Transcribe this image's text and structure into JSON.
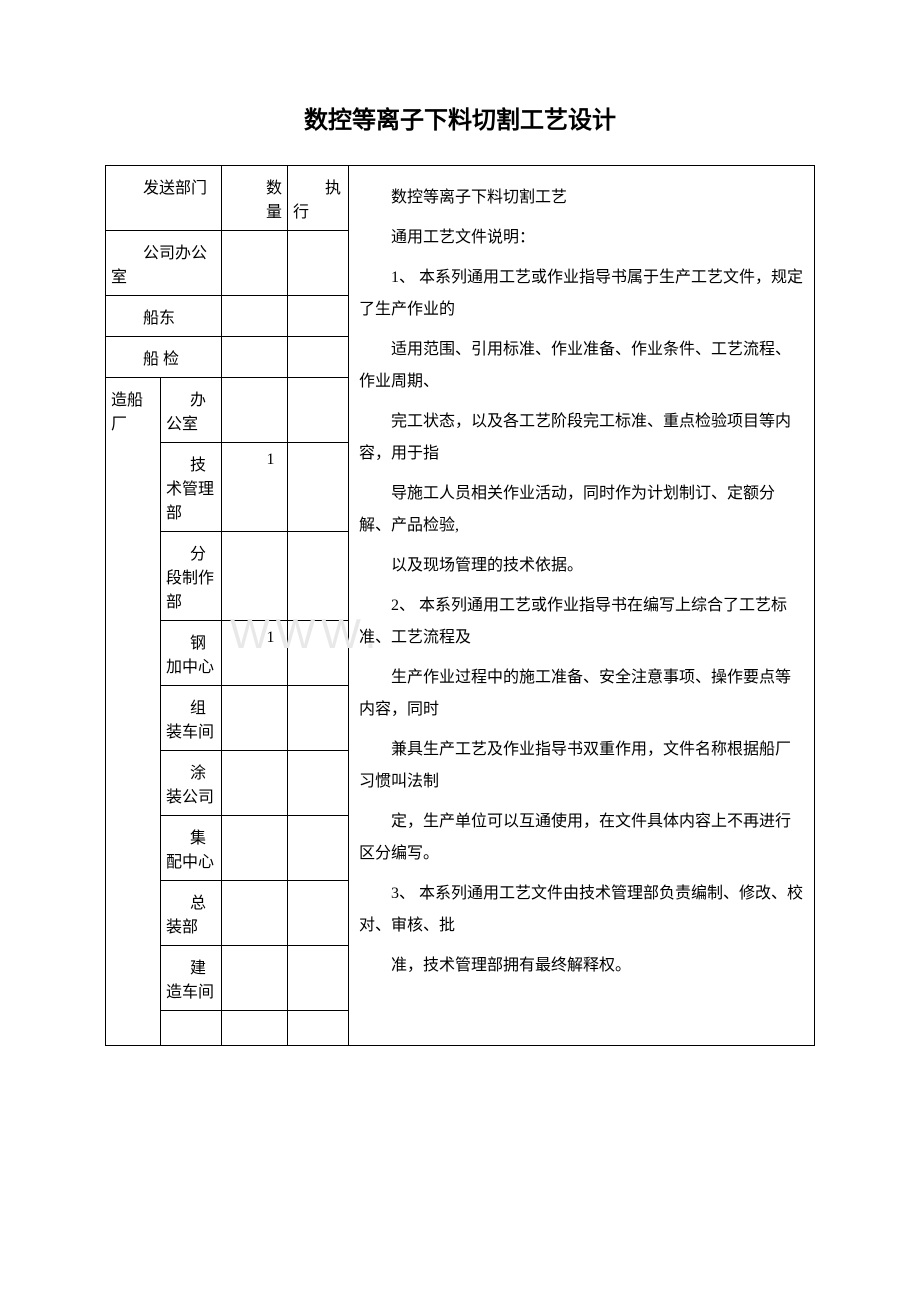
{
  "title": "数控等离子下料切割工艺设计",
  "watermark": "WWW.",
  "headers": {
    "dept": "发送部门",
    "qty": "数量",
    "exec": "执行"
  },
  "rows": {
    "office": "公司办公室",
    "shipowner": "船东",
    "shipinspect": "船 检",
    "shipyard_label": "造船厂",
    "sub_office": "办公室",
    "sub_tech": "技术管理部",
    "sub_tech_qty": "1",
    "sub_section": "分段制作部",
    "sub_steel": "钢加中心",
    "sub_steel_qty": "1",
    "sub_assembly": "组装车间",
    "sub_paint": "涂装公司",
    "sub_gather": "集配中心",
    "sub_final": "总装部",
    "sub_build": "建造车间"
  },
  "content": {
    "heading": "数控等离子下料切割工艺",
    "notice_title": "通用工艺文件说明：",
    "p1a": "1、 本系列通用工艺或作业指导书属于生产工艺文件，规定了生产作业的",
    "p1b": "适用范围、引用标准、作业准备、作业条件、工艺流程、作业周期、",
    "p1c": "完工状态，以及各工艺阶段完工标准、重点检验项目等内容，用于指",
    "p1d": "导施工人员相关作业活动，同时作为计划制订、定额分解、产品检验,",
    "p1e": "以及现场管理的技术依据。",
    "p2a": "2、 本系列通用工艺或作业指导书在编写上综合了工艺标准、工艺流程及",
    "p2b": "生产作业过程中的施工准备、安全注意事项、操作要点等内容，同时",
    "p2c": "兼具生产工艺及作业指导书双重作用，文件名称根据船厂习惯叫法制",
    "p2d": "定，生产单位可以互通使用，在文件具体内容上不再进行区分编写。",
    "p3a": "3、 本系列通用工艺文件由技术管理部负责编制、修改、校对、审核、批",
    "p3b": "准，技术管理部拥有最终解释权。"
  },
  "style": {
    "title_fontsize": 24,
    "body_fontsize": 16,
    "text_color": "#000000",
    "background_color": "#ffffff",
    "border_color": "#000000",
    "watermark_color": "#e8e8e8"
  }
}
